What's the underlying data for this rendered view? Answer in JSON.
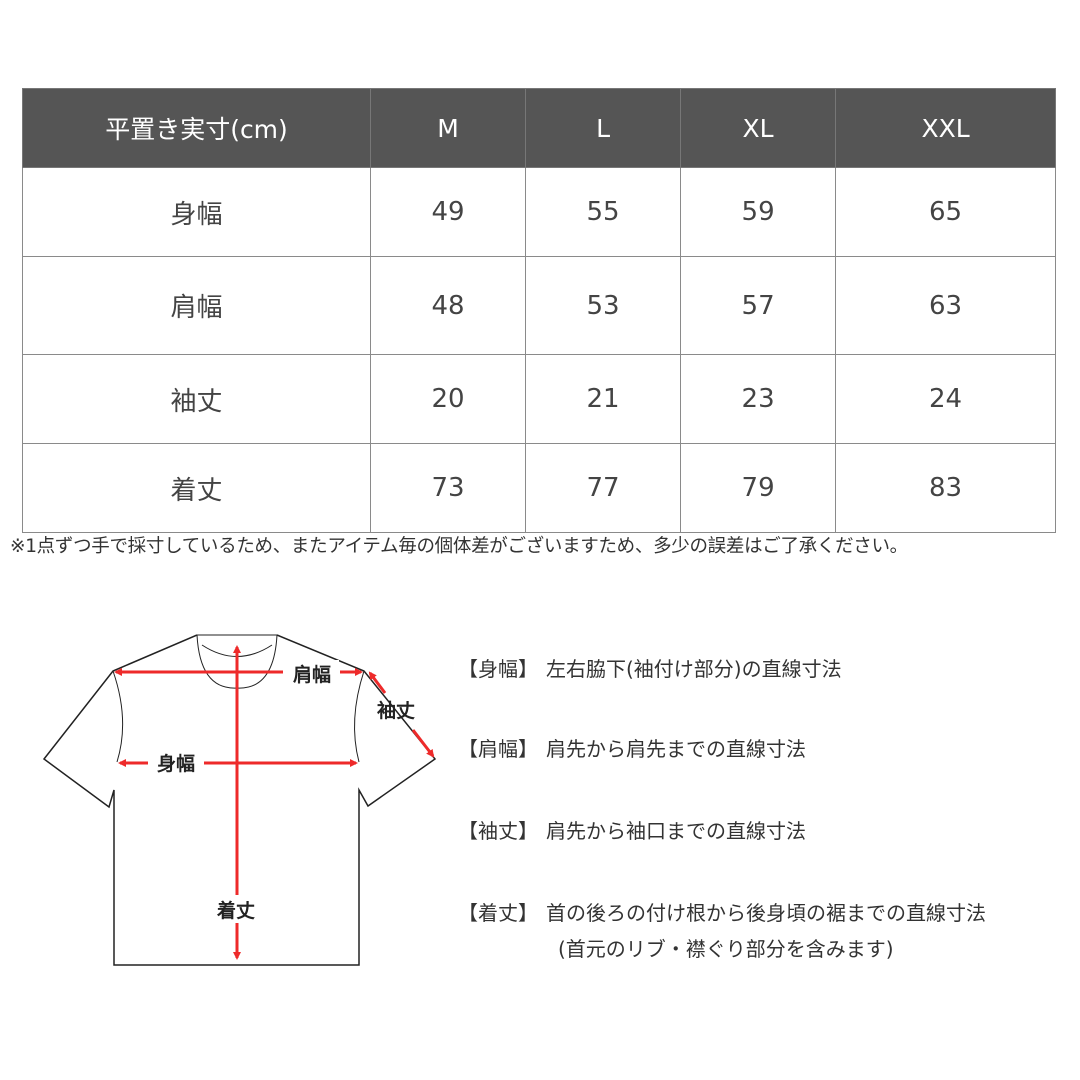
{
  "table": {
    "header": [
      "平置き実寸(cm)",
      "M",
      "L",
      "XL",
      "XXL"
    ],
    "rows": [
      {
        "label": "身幅",
        "values": [
          "49",
          "55",
          "59",
          "65"
        ]
      },
      {
        "label": "肩幅",
        "values": [
          "48",
          "53",
          "57",
          "63"
        ]
      },
      {
        "label": "袖丈",
        "values": [
          "20",
          "21",
          "23",
          "24"
        ]
      },
      {
        "label": "着丈",
        "values": [
          "73",
          "77",
          "79",
          "83"
        ]
      }
    ]
  },
  "note": "※1点ずつ手で採寸しているため、またアイテム毎の個体差がございますため、多少の誤差はご了承ください。",
  "diagram": {
    "labels": {
      "shoulder": "肩幅",
      "sleeve": "袖丈",
      "width": "身幅",
      "length": "着丈"
    },
    "arrow_color": "#ee2a2a"
  },
  "legend": [
    {
      "key": "【身幅】",
      "text": "左右脇下(袖付け部分)の直線寸法"
    },
    {
      "key": "【肩幅】",
      "text": "肩先から肩先までの直線寸法"
    },
    {
      "key": "【袖丈】",
      "text": "肩先から袖口までの直線寸法"
    },
    {
      "key": "【着丈】",
      "text": "首の後ろの付け根から後身頃の裾までの直線寸法",
      "text2": "(首元のリブ・襟ぐり部分を含みます)"
    }
  ],
  "colors": {
    "header_bg": "#555555",
    "border": "#8a8a8a"
  }
}
